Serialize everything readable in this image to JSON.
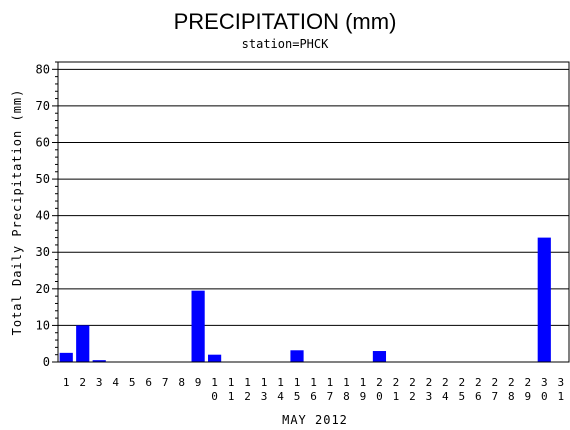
{
  "chart_data": {
    "type": "bar",
    "title": "PRECIPITATION (mm)",
    "subtitle": "station=PHCK",
    "xlabel": "MAY 2012",
    "ylabel": "Total Daily Precipitation (mm)",
    "ylim": [
      0,
      82
    ],
    "yticks": [
      0,
      10,
      20,
      30,
      40,
      50,
      60,
      70,
      80
    ],
    "grid": true,
    "bar_color": "#0000ff",
    "categories": [
      [
        "1"
      ],
      [
        "2"
      ],
      [
        "3"
      ],
      [
        "4"
      ],
      [
        "5"
      ],
      [
        "6"
      ],
      [
        "7"
      ],
      [
        "8"
      ],
      [
        "9"
      ],
      [
        "1",
        "0"
      ],
      [
        "1",
        "1"
      ],
      [
        "1",
        "2"
      ],
      [
        "1",
        "3"
      ],
      [
        "1",
        "4"
      ],
      [
        "1",
        "5"
      ],
      [
        "1",
        "6"
      ],
      [
        "1",
        "7"
      ],
      [
        "1",
        "8"
      ],
      [
        "1",
        "9"
      ],
      [
        "2",
        "0"
      ],
      [
        "2",
        "1"
      ],
      [
        "2",
        "2"
      ],
      [
        "2",
        "3"
      ],
      [
        "2",
        "4"
      ],
      [
        "2",
        "5"
      ],
      [
        "2",
        "6"
      ],
      [
        "2",
        "7"
      ],
      [
        "2",
        "8"
      ],
      [
        "2",
        "9"
      ],
      [
        "3",
        "0"
      ],
      [
        "3",
        "1"
      ]
    ],
    "values": [
      2.5,
      10,
      0.5,
      0,
      0,
      0,
      0,
      0,
      19.5,
      2,
      0,
      0,
      0,
      0,
      3.2,
      0,
      0,
      0,
      0,
      3,
      0,
      0,
      0,
      0,
      0,
      0,
      0,
      0,
      0,
      34,
      0
    ]
  }
}
